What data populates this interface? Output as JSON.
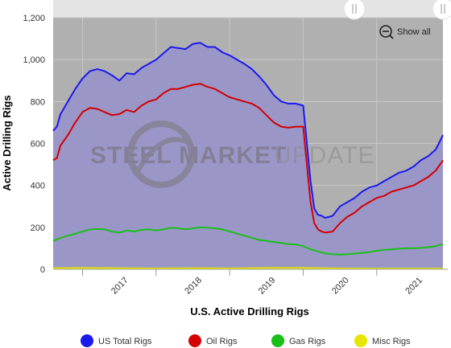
{
  "chart_data": {
    "type": "area",
    "title": "",
    "xlabel": "U.S. Active Drilling Rigs",
    "ylabel": "Active Drilling Rigs",
    "ylim": [
      0,
      1200
    ],
    "xlim": [
      2016.6,
      2021.9
    ],
    "yticks": [
      "0",
      "200",
      "400",
      "600",
      "800",
      "1,000",
      "1,200"
    ],
    "ytick_values": [
      0,
      200,
      400,
      600,
      800,
      1000,
      1200
    ],
    "xticks": [
      "2017",
      "2018",
      "2019",
      "2020",
      "2021"
    ],
    "xtick_values": [
      2017,
      2018,
      2019,
      2020,
      2021
    ],
    "grid": true,
    "legend": "bottom",
    "series": [
      {
        "name": "US Total Rigs",
        "color": "#1a1aee",
        "x": [
          2016.6,
          2016.65,
          2016.7,
          2016.8,
          2016.9,
          2017.0,
          2017.1,
          2017.2,
          2017.3,
          2017.4,
          2017.5,
          2017.6,
          2017.7,
          2017.8,
          2017.9,
          2018.0,
          2018.1,
          2018.2,
          2018.3,
          2018.4,
          2018.5,
          2018.6,
          2018.7,
          2018.8,
          2018.9,
          2019.0,
          2019.1,
          2019.2,
          2019.3,
          2019.4,
          2019.5,
          2019.6,
          2019.7,
          2019.8,
          2019.9,
          2020.0,
          2020.1,
          2020.15,
          2020.2,
          2020.25,
          2020.3,
          2020.4,
          2020.5,
          2020.6,
          2020.7,
          2020.8,
          2020.9,
          2021.0,
          2021.1,
          2021.2,
          2021.3,
          2021.4,
          2021.5,
          2021.6,
          2021.7,
          2021.8,
          2021.9
        ],
        "values": [
          660,
          680,
          740,
          800,
          860,
          910,
          945,
          955,
          945,
          925,
          900,
          935,
          930,
          960,
          980,
          1000,
          1030,
          1060,
          1055,
          1050,
          1075,
          1080,
          1060,
          1060,
          1035,
          1020,
          1000,
          980,
          955,
          920,
          880,
          830,
          800,
          790,
          790,
          780,
          420,
          290,
          260,
          255,
          245,
          255,
          300,
          320,
          340,
          370,
          390,
          400,
          420,
          440,
          460,
          470,
          490,
          520,
          540,
          570,
          640
        ]
      },
      {
        "name": "Oil Rigs",
        "color": "#d40000",
        "x": [
          2016.6,
          2016.65,
          2016.7,
          2016.8,
          2016.9,
          2017.0,
          2017.1,
          2017.2,
          2017.3,
          2017.4,
          2017.5,
          2017.6,
          2017.7,
          2017.8,
          2017.9,
          2018.0,
          2018.1,
          2018.2,
          2018.3,
          2018.4,
          2018.5,
          2018.6,
          2018.7,
          2018.8,
          2018.9,
          2019.0,
          2019.1,
          2019.2,
          2019.3,
          2019.4,
          2019.5,
          2019.6,
          2019.7,
          2019.8,
          2019.9,
          2020.0,
          2020.1,
          2020.15,
          2020.2,
          2020.25,
          2020.3,
          2020.4,
          2020.5,
          2020.6,
          2020.7,
          2020.8,
          2020.9,
          2021.0,
          2021.1,
          2021.2,
          2021.3,
          2021.4,
          2021.5,
          2021.6,
          2021.7,
          2021.8,
          2021.9
        ],
        "values": [
          520,
          530,
          590,
          640,
          700,
          750,
          770,
          765,
          750,
          735,
          740,
          760,
          750,
          780,
          800,
          810,
          840,
          860,
          860,
          870,
          880,
          885,
          870,
          860,
          840,
          820,
          810,
          800,
          790,
          770,
          735,
          700,
          680,
          675,
          680,
          680,
          320,
          220,
          190,
          180,
          175,
          180,
          220,
          250,
          270,
          300,
          320,
          340,
          350,
          370,
          380,
          390,
          400,
          420,
          440,
          470,
          520
        ]
      },
      {
        "name": "Gas Rigs",
        "color": "#18c018",
        "x": [
          2016.6,
          2016.7,
          2016.8,
          2016.9,
          2017.0,
          2017.1,
          2017.2,
          2017.3,
          2017.4,
          2017.5,
          2017.6,
          2017.7,
          2017.8,
          2017.9,
          2018.0,
          2018.1,
          2018.2,
          2018.3,
          2018.4,
          2018.5,
          2018.6,
          2018.7,
          2018.8,
          2018.9,
          2019.0,
          2019.1,
          2019.2,
          2019.3,
          2019.4,
          2019.5,
          2019.6,
          2019.7,
          2019.8,
          2019.9,
          2020.0,
          2020.1,
          2020.2,
          2020.3,
          2020.4,
          2020.5,
          2020.6,
          2020.7,
          2020.8,
          2020.9,
          2021.0,
          2021.1,
          2021.2,
          2021.3,
          2021.4,
          2021.5,
          2021.6,
          2021.7,
          2021.8,
          2021.9
        ],
        "values": [
          135,
          150,
          160,
          170,
          180,
          190,
          192,
          190,
          180,
          175,
          185,
          180,
          188,
          190,
          185,
          190,
          198,
          195,
          190,
          195,
          200,
          198,
          195,
          190,
          180,
          170,
          160,
          150,
          140,
          135,
          130,
          125,
          120,
          118,
          110,
          95,
          85,
          75,
          72,
          70,
          72,
          75,
          78,
          82,
          88,
          92,
          95,
          98,
          100,
          100,
          102,
          105,
          110,
          120
        ]
      },
      {
        "name": "Misc Rigs",
        "color": "#e6e600",
        "x": [
          2016.6,
          2017.0,
          2017.5,
          2018.0,
          2018.5,
          2019.0,
          2019.5,
          2020.0,
          2020.5,
          2021.0,
          2021.5,
          2021.9
        ],
        "values": [
          5,
          6,
          5,
          4,
          5,
          4,
          6,
          6,
          4,
          3,
          3,
          3
        ]
      }
    ]
  },
  "watermark": {
    "word1": "STEEL",
    "word2": "MARKET",
    "word3": "UPDATE"
  },
  "controls": {
    "show_all_label": "Show all"
  },
  "colors": {
    "plot_bg": "#b0b0b0",
    "area_fill": "#9b96c8",
    "navigator": "#e4e4e4"
  }
}
